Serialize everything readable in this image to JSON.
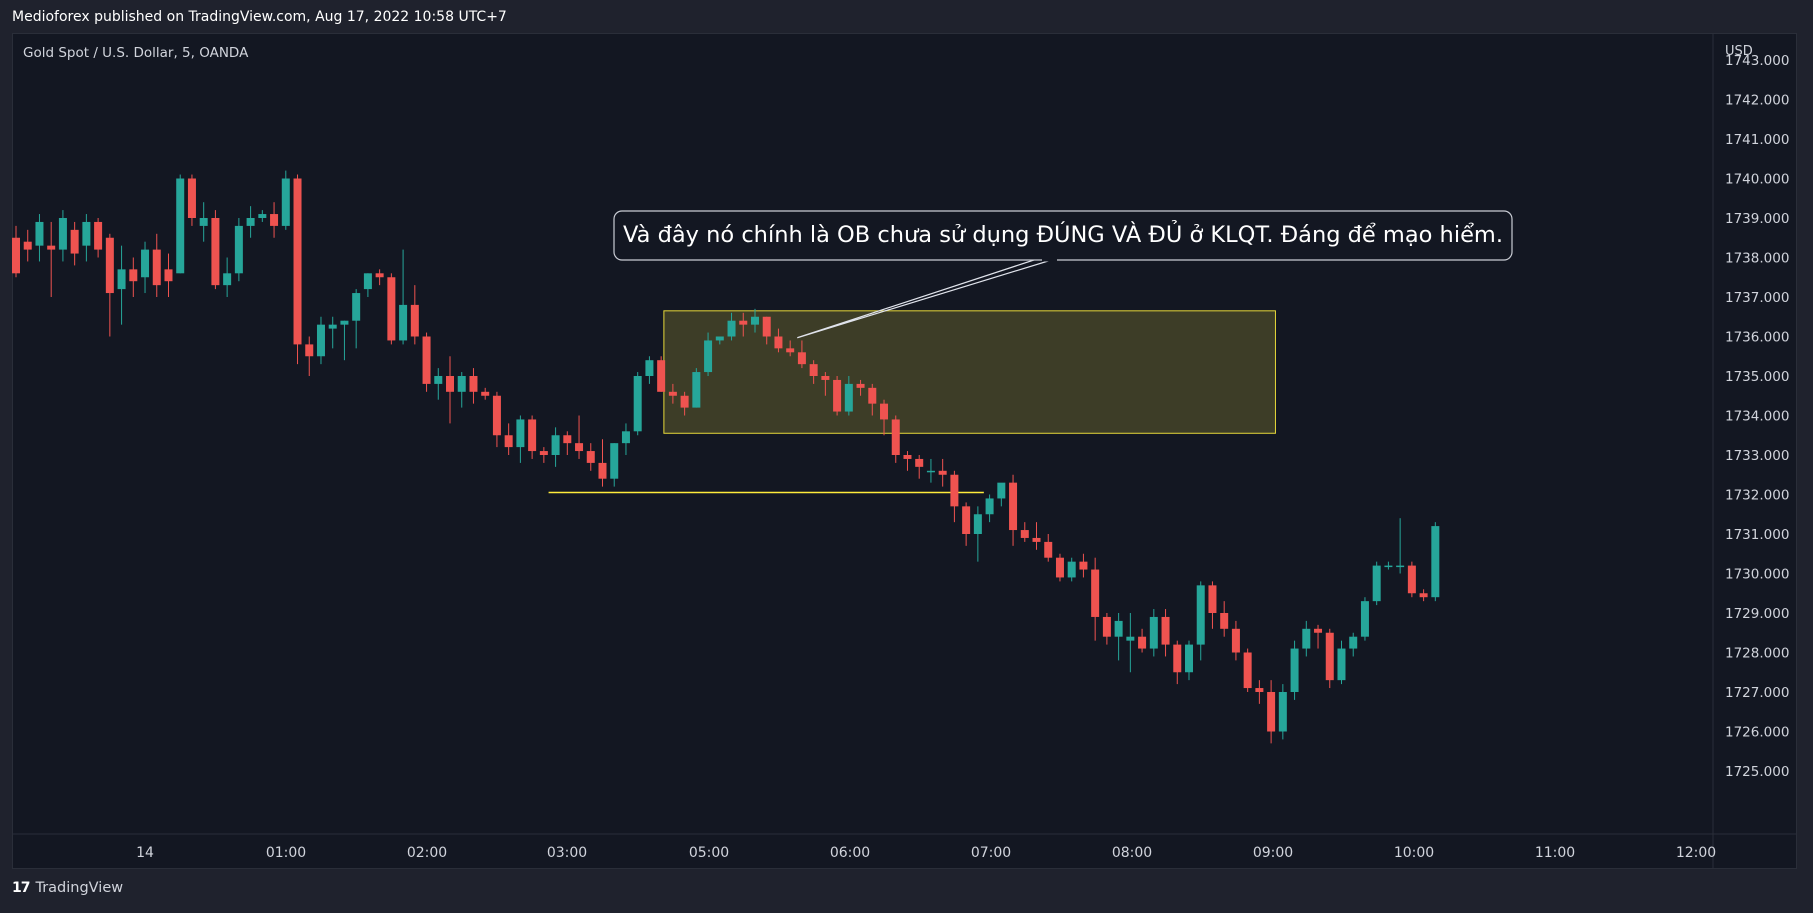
{
  "header": {
    "published_text": "Medioforex published on TradingView.com, Aug 17, 2022 10:58 UTC+7"
  },
  "legend": {
    "symbol_text": "Gold Spot / U.S. Dollar, 5, OANDA"
  },
  "footer": {
    "brand_logo": "17",
    "brand_text": "TradingView"
  },
  "colors": {
    "up": "#26a69a",
    "down": "#ef5350",
    "zone_border": "#e6d83a",
    "level_line": "#ffeb3b"
  },
  "chart_data": {
    "type": "candlestick",
    "symbol": "XAUUSD",
    "interval": "5",
    "currency": "USD",
    "ylim": [
      1724.5,
      1743.5
    ],
    "y_ticks": [
      "1743.000",
      "1742.000",
      "1741.000",
      "1740.000",
      "1739.000",
      "1738.000",
      "1737.000",
      "1736.000",
      "1735.000",
      "1734.000",
      "1733.000",
      "1732.000",
      "1731.000",
      "1730.000",
      "1729.000",
      "1728.000",
      "1727.000",
      "1726.000",
      "1725.000"
    ],
    "x_ticks": [
      "14",
      "01:00",
      "02:00",
      "03:00",
      "05:00",
      "06:00",
      "07:00",
      "08:00",
      "09:00",
      "10:00",
      "11:00",
      "12:00"
    ],
    "candles": [
      [
        1738.5,
        1738.8,
        1737.5,
        1737.6
      ],
      [
        1738.4,
        1738.7,
        1737.9,
        1738.2
      ],
      [
        1738.3,
        1739.1,
        1737.9,
        1738.9
      ],
      [
        1738.3,
        1738.9,
        1737.0,
        1738.2
      ],
      [
        1738.2,
        1739.2,
        1737.9,
        1739.0
      ],
      [
        1738.7,
        1738.9,
        1737.8,
        1738.1
      ],
      [
        1738.3,
        1739.1,
        1737.9,
        1738.9
      ],
      [
        1738.9,
        1739.0,
        1738.0,
        1738.2
      ],
      [
        1738.5,
        1738.6,
        1736.0,
        1737.1
      ],
      [
        1737.2,
        1738.3,
        1736.3,
        1737.7
      ],
      [
        1737.7,
        1738.0,
        1737.0,
        1737.4
      ],
      [
        1737.5,
        1738.4,
        1737.1,
        1738.2
      ],
      [
        1738.2,
        1738.6,
        1737.0,
        1737.3
      ],
      [
        1737.7,
        1738.1,
        1737.0,
        1737.4
      ],
      [
        1737.6,
        1740.1,
        1737.6,
        1740.0
      ],
      [
        1740.0,
        1740.1,
        1738.8,
        1739.0
      ],
      [
        1738.8,
        1739.4,
        1738.4,
        1739.0
      ],
      [
        1739.0,
        1739.2,
        1737.2,
        1737.3
      ],
      [
        1737.3,
        1738.0,
        1737.0,
        1737.6
      ],
      [
        1737.6,
        1739.0,
        1737.4,
        1738.8
      ],
      [
        1738.8,
        1739.3,
        1738.5,
        1739.0
      ],
      [
        1739.0,
        1739.2,
        1738.9,
        1739.1
      ],
      [
        1739.1,
        1739.4,
        1738.5,
        1738.8
      ],
      [
        1738.8,
        1740.2,
        1738.7,
        1740.0
      ],
      [
        1740.0,
        1740.1,
        1735.3,
        1735.8
      ],
      [
        1735.8,
        1736.0,
        1735.0,
        1735.5
      ],
      [
        1735.5,
        1736.5,
        1735.3,
        1736.3
      ],
      [
        1736.2,
        1736.5,
        1735.7,
        1736.3
      ],
      [
        1736.3,
        1736.4,
        1735.4,
        1736.4
      ],
      [
        1736.4,
        1737.2,
        1735.7,
        1737.1
      ],
      [
        1737.2,
        1737.6,
        1737.0,
        1737.6
      ],
      [
        1737.6,
        1737.7,
        1737.3,
        1737.5
      ],
      [
        1737.5,
        1737.6,
        1735.8,
        1735.9
      ],
      [
        1735.9,
        1738.2,
        1735.8,
        1736.8
      ],
      [
        1736.8,
        1737.3,
        1735.8,
        1736.0
      ],
      [
        1736.0,
        1736.1,
        1734.6,
        1734.8
      ],
      [
        1734.8,
        1735.2,
        1734.4,
        1735.0
      ],
      [
        1735.0,
        1735.5,
        1733.8,
        1734.6
      ],
      [
        1734.6,
        1735.1,
        1734.2,
        1735.0
      ],
      [
        1735.0,
        1735.2,
        1734.3,
        1734.6
      ],
      [
        1734.6,
        1734.7,
        1734.4,
        1734.5
      ],
      [
        1734.5,
        1734.6,
        1733.2,
        1733.5
      ],
      [
        1733.5,
        1733.8,
        1733.0,
        1733.2
      ],
      [
        1733.2,
        1734.0,
        1732.8,
        1733.9
      ],
      [
        1733.9,
        1734.0,
        1732.9,
        1733.1
      ],
      [
        1733.1,
        1733.2,
        1732.8,
        1733.0
      ],
      [
        1733.0,
        1733.7,
        1732.7,
        1733.5
      ],
      [
        1733.5,
        1733.6,
        1733.0,
        1733.3
      ],
      [
        1733.3,
        1734.0,
        1732.9,
        1733.1
      ],
      [
        1733.1,
        1733.3,
        1732.6,
        1732.8
      ],
      [
        1732.8,
        1733.4,
        1732.2,
        1732.4
      ],
      [
        1732.4,
        1733.3,
        1732.2,
        1733.3
      ],
      [
        1733.3,
        1733.8,
        1733.0,
        1733.6
      ],
      [
        1733.6,
        1735.1,
        1733.5,
        1735.0
      ],
      [
        1735.0,
        1735.5,
        1734.8,
        1735.4
      ],
      [
        1735.4,
        1735.5,
        1734.6,
        1734.6
      ],
      [
        1734.6,
        1734.8,
        1734.3,
        1734.5
      ],
      [
        1734.5,
        1734.6,
        1734.0,
        1734.2
      ],
      [
        1734.2,
        1735.2,
        1734.2,
        1735.1
      ],
      [
        1735.1,
        1736.1,
        1735.0,
        1735.9
      ],
      [
        1735.9,
        1736.0,
        1735.8,
        1736.0
      ],
      [
        1736.0,
        1736.6,
        1735.9,
        1736.4
      ],
      [
        1736.4,
        1736.6,
        1736.0,
        1736.3
      ],
      [
        1736.3,
        1736.7,
        1736.1,
        1736.5
      ],
      [
        1736.5,
        1736.5,
        1735.8,
        1736.0
      ],
      [
        1736.0,
        1736.2,
        1735.6,
        1735.7
      ],
      [
        1735.7,
        1735.9,
        1735.5,
        1735.6
      ],
      [
        1735.6,
        1735.9,
        1735.2,
        1735.3
      ],
      [
        1735.3,
        1735.4,
        1734.8,
        1735.0
      ],
      [
        1735.0,
        1735.1,
        1734.5,
        1734.9
      ],
      [
        1734.9,
        1735.0,
        1734.0,
        1734.1
      ],
      [
        1734.1,
        1735.0,
        1734.0,
        1734.8
      ],
      [
        1734.8,
        1734.9,
        1734.5,
        1734.7
      ],
      [
        1734.7,
        1734.8,
        1734.0,
        1734.3
      ],
      [
        1734.3,
        1734.4,
        1733.5,
        1733.9
      ],
      [
        1733.9,
        1734.0,
        1732.8,
        1733.0
      ],
      [
        1733.0,
        1733.1,
        1732.6,
        1732.9
      ],
      [
        1732.9,
        1733.0,
        1732.4,
        1732.7
      ],
      [
        1732.6,
        1732.9,
        1732.3,
        1732.6
      ],
      [
        1732.6,
        1732.9,
        1732.2,
        1732.5
      ],
      [
        1732.5,
        1732.6,
        1731.3,
        1731.7
      ],
      [
        1731.7,
        1731.8,
        1730.7,
        1731.0
      ],
      [
        1731.0,
        1731.7,
        1730.3,
        1731.5
      ],
      [
        1731.5,
        1732.0,
        1731.3,
        1731.9
      ],
      [
        1731.9,
        1732.2,
        1731.7,
        1732.3
      ],
      [
        1732.3,
        1732.5,
        1730.7,
        1731.1
      ],
      [
        1731.1,
        1731.3,
        1730.8,
        1730.9
      ],
      [
        1730.9,
        1731.3,
        1730.6,
        1730.8
      ],
      [
        1730.8,
        1731.0,
        1730.3,
        1730.4
      ],
      [
        1730.4,
        1730.5,
        1729.8,
        1729.9
      ],
      [
        1729.9,
        1730.4,
        1729.8,
        1730.3
      ],
      [
        1730.3,
        1730.5,
        1729.9,
        1730.1
      ],
      [
        1730.1,
        1730.4,
        1728.3,
        1728.9
      ],
      [
        1728.9,
        1729.0,
        1728.2,
        1728.4
      ],
      [
        1728.4,
        1729.0,
        1727.8,
        1728.8
      ],
      [
        1728.3,
        1729.0,
        1727.5,
        1728.4
      ],
      [
        1728.4,
        1728.6,
        1728.0,
        1728.1
      ],
      [
        1728.1,
        1729.1,
        1727.9,
        1728.9
      ],
      [
        1728.9,
        1729.1,
        1727.9,
        1728.2
      ],
      [
        1728.2,
        1728.3,
        1727.2,
        1727.5
      ],
      [
        1727.5,
        1728.3,
        1727.3,
        1728.2
      ],
      [
        1728.2,
        1729.8,
        1727.8,
        1729.7
      ],
      [
        1729.7,
        1729.8,
        1728.6,
        1729.0
      ],
      [
        1729.0,
        1729.3,
        1728.4,
        1728.6
      ],
      [
        1728.6,
        1728.8,
        1727.8,
        1728.0
      ],
      [
        1728.0,
        1728.1,
        1727.0,
        1727.1
      ],
      [
        1727.1,
        1727.3,
        1726.7,
        1727.0
      ],
      [
        1727.0,
        1727.3,
        1725.7,
        1726.0
      ],
      [
        1726.0,
        1727.2,
        1725.8,
        1727.0
      ],
      [
        1727.0,
        1728.3,
        1726.8,
        1728.1
      ],
      [
        1728.1,
        1728.8,
        1727.9,
        1728.6
      ],
      [
        1728.6,
        1728.7,
        1728.1,
        1728.5
      ],
      [
        1728.5,
        1728.6,
        1727.1,
        1727.3
      ],
      [
        1727.3,
        1728.3,
        1727.2,
        1728.1
      ],
      [
        1728.1,
        1728.5,
        1727.9,
        1728.4
      ],
      [
        1728.4,
        1729.4,
        1728.3,
        1729.3
      ],
      [
        1729.3,
        1730.3,
        1729.2,
        1730.2
      ],
      [
        1730.2,
        1730.3,
        1730.1,
        1730.2
      ],
      [
        1730.2,
        1731.4,
        1730.0,
        1730.2
      ],
      [
        1730.2,
        1730.3,
        1729.4,
        1729.5
      ],
      [
        1729.5,
        1729.6,
        1729.3,
        1729.4
      ],
      [
        1729.4,
        1731.3,
        1729.3,
        1731.2
      ]
    ],
    "ob_zone": {
      "price_high": 1736.65,
      "price_low": 1733.55,
      "start_candle": 56,
      "end_candle": 102
    },
    "level_line": {
      "price": 1732.05,
      "start_candle": 46,
      "end_candle": 82
    },
    "annotation": {
      "text": "Và đây nó chính là OB chưa sử dụng ĐÚNG VÀ ĐỦ ở KLQT. Đáng để mạo hiểm.",
      "pointer_price": 1736.5,
      "pointer_candle": 62
    }
  }
}
